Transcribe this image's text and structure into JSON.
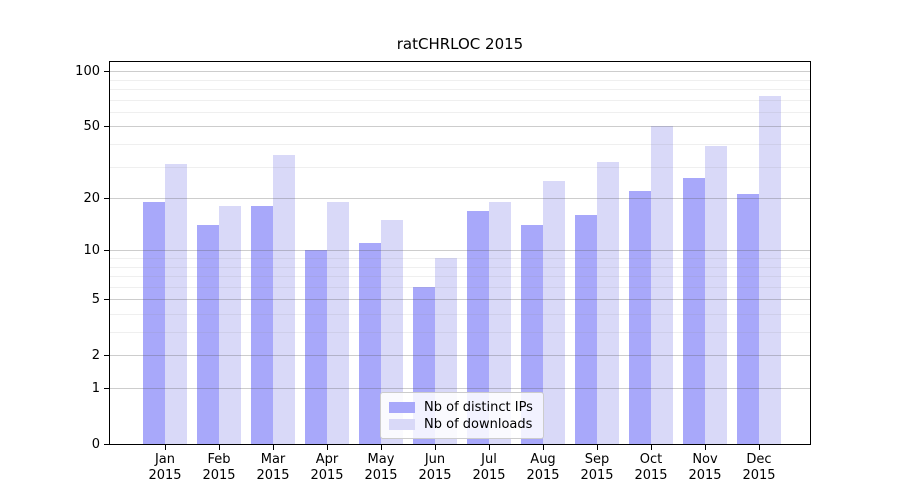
{
  "window": {
    "background": "#ffffff"
  },
  "chart_data": {
    "type": "bar",
    "title": "ratCHRLOC 2015",
    "categories": [
      "Jan",
      "Feb",
      "Mar",
      "Apr",
      "May",
      "Jun",
      "Jul",
      "Aug",
      "Sep",
      "Oct",
      "Nov",
      "Dec"
    ],
    "x_year_label": "2015",
    "series": [
      {
        "name": "Nb of distinct IPs",
        "color": "#a8a8fa",
        "values": [
          19,
          14,
          18,
          10,
          11,
          6,
          17,
          14,
          16,
          22,
          26,
          21
        ]
      },
      {
        "name": "Nb of downloads",
        "color": "#d9d9f8",
        "values": [
          31,
          18,
          35,
          19,
          15,
          9,
          19,
          25,
          32,
          50,
          39,
          73
        ]
      }
    ],
    "yscale": "log1p",
    "ylim": [
      0,
      100
    ],
    "y_tick_values": [
      0,
      1,
      2,
      5,
      10,
      20,
      50,
      100
    ],
    "y_tick_labels": [
      "0",
      "1",
      "2",
      "5",
      "10",
      "20",
      "50",
      "100"
    ],
    "y_minor_grid_values": [
      3,
      4,
      6,
      7,
      8,
      9,
      30,
      40,
      60,
      70,
      80,
      90
    ],
    "grid": "horizontal major+minor",
    "legend_position": "bottom-center-inside"
  },
  "legend": {
    "items": [
      {
        "label": "Nb of distinct IPs",
        "color": "#a8a8fa"
      },
      {
        "label": "Nb of downloads",
        "color": "#d9d9f8"
      }
    ]
  },
  "colors": {
    "axis": "#000000",
    "text": "#000000",
    "grid_major": "rgba(90,90,90,0.30)",
    "grid_minor": "rgba(140,140,140,0.14)",
    "background": "#ffffff"
  }
}
